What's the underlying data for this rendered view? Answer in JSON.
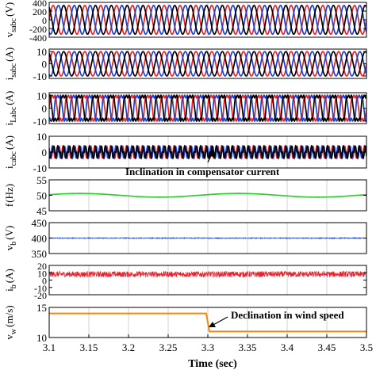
{
  "figure": {
    "xlabel": "Time (sec)",
    "xlim": [
      3.1,
      3.5
    ],
    "xticks": [
      "3.1",
      "3.15",
      "3.2",
      "3.25",
      "3.3",
      "3.35",
      "3.4",
      "3.45",
      "3.5"
    ]
  },
  "colors": {
    "phase_a": "#e8202a",
    "phase_b": "#1f3fd8",
    "phase_c": "#000000",
    "frequency": "#27d427",
    "vb": "#2a4ac8",
    "ib": "#e8202a",
    "wind": "#f08a10",
    "grid": "#c8c8c8"
  },
  "annotations": {
    "compensator": "Inclination in compensator current",
    "wind": "Declination in wind speed"
  },
  "chart_data": [
    {
      "type": "line",
      "ylabel_main": "v",
      "ylabel_sub": "sabc",
      "ylabel_unit": "(V)",
      "ylim": [
        -400,
        400
      ],
      "yticks": [
        "400",
        "200",
        "0",
        "-200",
        "-400"
      ],
      "series": [
        {
          "name": "a",
          "waveform": "sine",
          "amplitude": 330,
          "frequency_hz": 50,
          "phase_deg": 0
        },
        {
          "name": "b",
          "waveform": "sine",
          "amplitude": 330,
          "frequency_hz": 50,
          "phase_deg": -120
        },
        {
          "name": "c",
          "waveform": "sine",
          "amplitude": 330,
          "frequency_hz": 50,
          "phase_deg": 120
        }
      ]
    },
    {
      "type": "line",
      "ylabel_main": "i",
      "ylabel_sub": "sabc",
      "ylabel_unit": "(A)",
      "ylim": [
        -12,
        12
      ],
      "yticks": [
        "10",
        "0",
        "-10"
      ],
      "series": [
        {
          "name": "a",
          "waveform": "sine",
          "amplitude": 10,
          "frequency_hz": 50,
          "phase_deg": 0
        },
        {
          "name": "b",
          "waveform": "sine",
          "amplitude": 10,
          "frequency_hz": 50,
          "phase_deg": -120
        },
        {
          "name": "c",
          "waveform": "sine",
          "amplitude": 10,
          "frequency_hz": 50,
          "phase_deg": 120
        }
      ]
    },
    {
      "type": "line",
      "ylabel_main": "i",
      "ylabel_sub": "Labc",
      "ylabel_unit": "(A)",
      "ylim": [
        -12,
        12
      ],
      "yticks": [
        "10",
        "0",
        "-10"
      ],
      "series": [
        {
          "name": "a",
          "waveform": "rectifier",
          "amplitude": 9,
          "frequency_hz": 50,
          "phase_deg": 0
        },
        {
          "name": "b",
          "waveform": "rectifier",
          "amplitude": 9,
          "frequency_hz": 50,
          "phase_deg": -120
        },
        {
          "name": "c",
          "waveform": "rectifier",
          "amplitude": 9,
          "frequency_hz": 50,
          "phase_deg": 120
        }
      ]
    },
    {
      "type": "line",
      "ylabel_main": "i",
      "ylabel_sub": "cabc",
      "ylabel_unit": "(A)",
      "ylim": [
        -10,
        10
      ],
      "yticks": [
        "10",
        "0",
        "-10"
      ],
      "series": [
        {
          "name": "a",
          "waveform": "compensator",
          "amplitude": 6,
          "frequency_hz": 50,
          "phase_deg": 0
        },
        {
          "name": "b",
          "waveform": "compensator",
          "amplitude": 6,
          "frequency_hz": 50,
          "phase_deg": -120
        },
        {
          "name": "c",
          "waveform": "compensator",
          "amplitude": 6,
          "frequency_hz": 50,
          "phase_deg": 120
        }
      ]
    },
    {
      "type": "line",
      "ylabel_main": "f",
      "ylabel_sub": "",
      "ylabel_unit": "(Hz)",
      "ylim": [
        45,
        55
      ],
      "yticks": [
        "55",
        "50",
        "45"
      ],
      "series": [
        {
          "name": "f",
          "waveform": "ripple",
          "offset": 50,
          "amplitude": 0.6,
          "frequency_hz": 5,
          "phase_deg": 200
        }
      ]
    },
    {
      "type": "line",
      "ylabel_main": "v",
      "ylabel_sub": "b",
      "ylabel_unit": "(V)",
      "ylim": [
        350,
        450
      ],
      "yticks": [
        "450",
        "400",
        "350"
      ],
      "series": [
        {
          "name": "vb",
          "waveform": "noise",
          "offset": 400,
          "amplitude": 1.5
        }
      ]
    },
    {
      "type": "line",
      "ylabel_main": "i",
      "ylabel_sub": "b",
      "ylabel_unit": "(A)",
      "ylim": [
        -20,
        20
      ],
      "yticks": [
        "20",
        "10",
        "0",
        "-10",
        "-20"
      ],
      "series": [
        {
          "name": "ib",
          "waveform": "noise",
          "offset": 8,
          "amplitude": 4
        }
      ]
    },
    {
      "type": "line",
      "ylabel_main": "v",
      "ylabel_sub": "w",
      "ylabel_unit": "(m/s)",
      "ylim": [
        10,
        15
      ],
      "yticks": [
        "15",
        "10"
      ],
      "series": [
        {
          "name": "vw",
          "waveform": "step",
          "points": [
            [
              3.1,
              14
            ],
            [
              3.298,
              14
            ],
            [
              3.302,
              11
            ],
            [
              3.5,
              11
            ]
          ]
        }
      ]
    }
  ]
}
